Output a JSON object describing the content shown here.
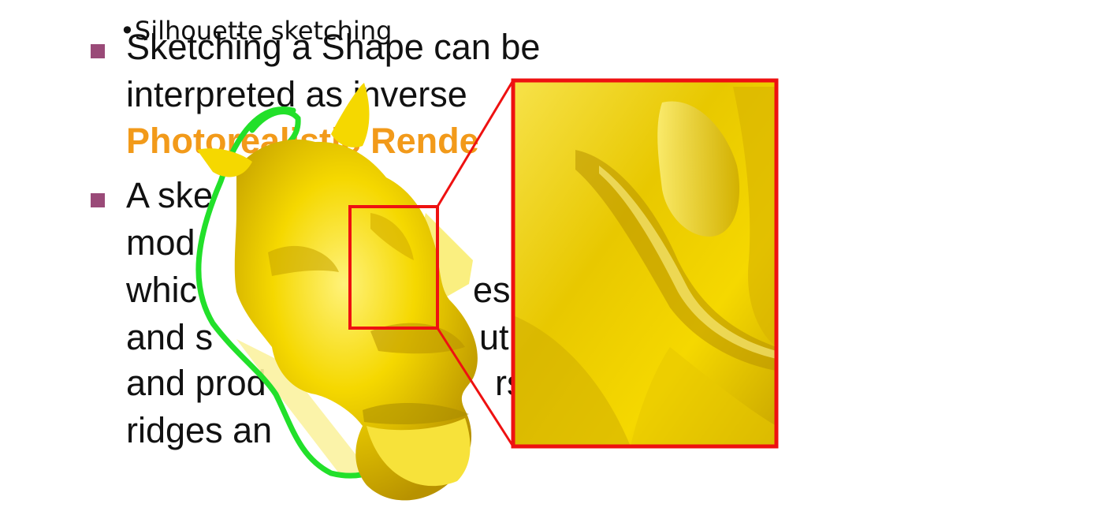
{
  "slide": {
    "overlay_heading": "•Silhouette sketching",
    "bullet1": {
      "line1": "Sketching a Shape can be",
      "line2": "interpreted as inverse",
      "line3": "Photorealistic Rende"
    },
    "bullet2": {
      "line1": "A ske",
      "line2": "mod",
      "line3": "whic",
      "line3b": "es",
      "line4": "and s",
      "line4b": "ut,",
      "line5": "and prod",
      "line5b": "rs",
      "line6": "ridges an"
    }
  },
  "figure": {
    "subject": "camel-head-3d-model",
    "colors": {
      "model": "#f5d800",
      "model_shadow": "#c9a600",
      "silhouette_stroke": "#22e02a",
      "inner_stroke": "#2f5fe0",
      "zoom_frame": "#ee1111",
      "accent_text": "#f29a1a",
      "bullet": "#9a4a78"
    }
  }
}
